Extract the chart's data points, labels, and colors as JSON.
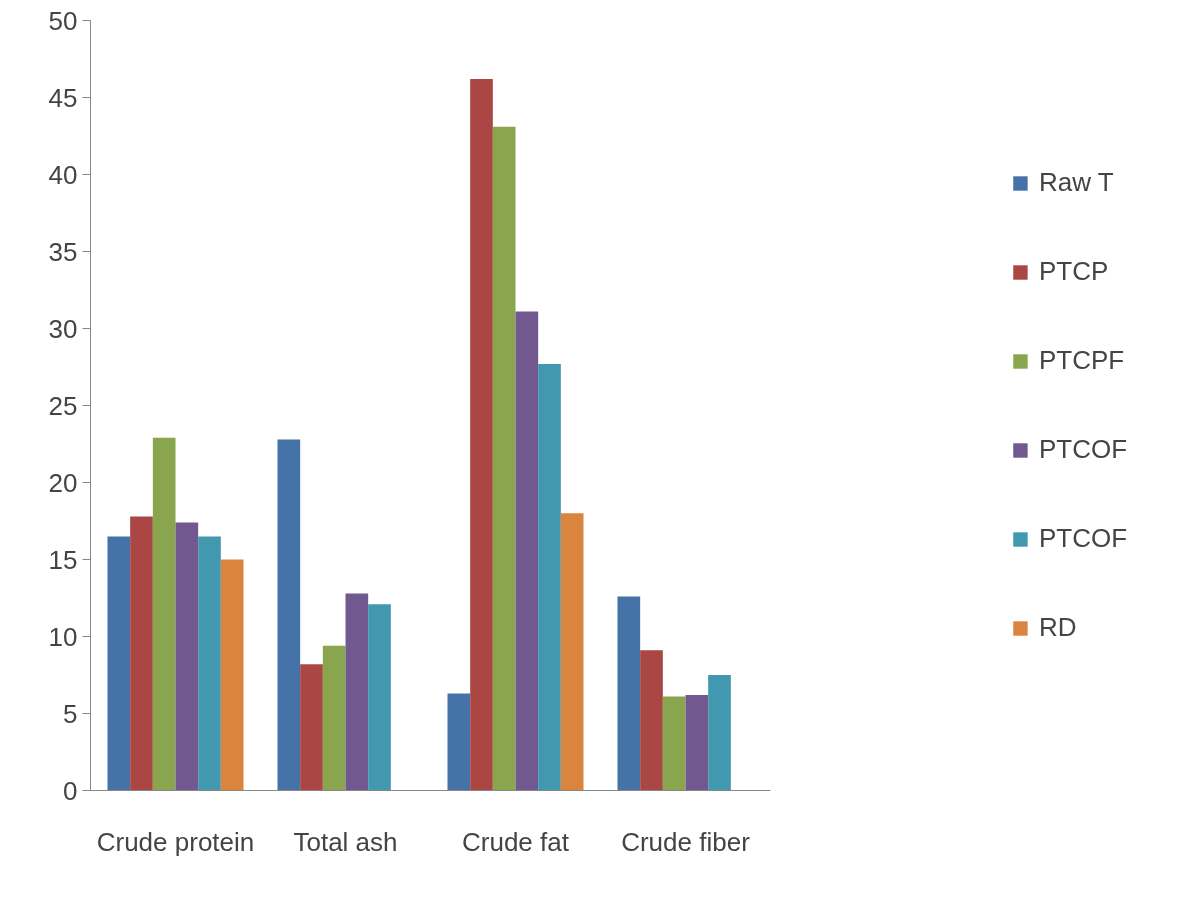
{
  "chart_data": {
    "type": "bar",
    "categories": [
      "Crude protein",
      "Total ash",
      "Crude fat",
      "Crude fiber"
    ],
    "series": [
      {
        "name": "Raw T",
        "color": "#4572a7",
        "values": [
          16.5,
          22.8,
          6.3,
          12.6
        ]
      },
      {
        "name": "PTCP",
        "color": "#aa4643",
        "values": [
          17.8,
          8.2,
          46.2,
          9.1
        ]
      },
      {
        "name": "PTCPF",
        "color": "#89a54e",
        "values": [
          22.9,
          9.4,
          43.1,
          6.1
        ]
      },
      {
        "name": "PTCOF",
        "color": "#71588f",
        "values": [
          17.4,
          12.8,
          31.1,
          6.2
        ]
      },
      {
        "name": "PTCOF",
        "color": "#4198af",
        "values": [
          16.5,
          12.1,
          27.7,
          7.5
        ]
      },
      {
        "name": "RD",
        "color": "#db843d",
        "values": [
          15.0,
          null,
          18.0,
          null
        ]
      }
    ],
    "ylim": [
      0,
      50
    ],
    "yticks": [
      0,
      5,
      10,
      15,
      20,
      25,
      30,
      35,
      40,
      45,
      50
    ],
    "grid": false,
    "legend": "right"
  }
}
